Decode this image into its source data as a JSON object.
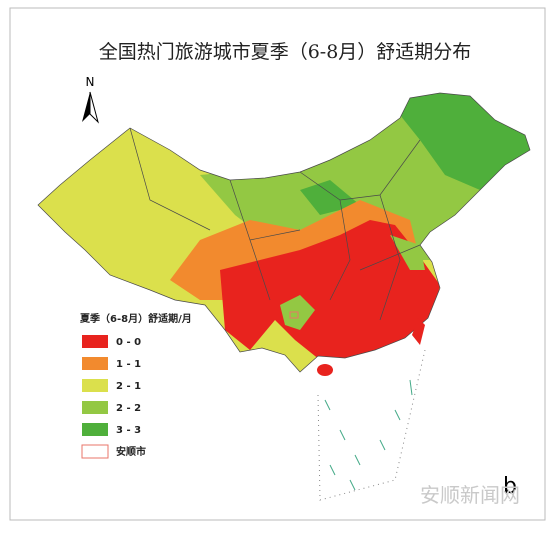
{
  "header": {
    "title": "全国热门旅游城市夏季（6-8月）舒适期分布"
  },
  "north": "N",
  "legend": {
    "title": "夏季（6-8月）舒适期/月",
    "items": [
      {
        "label": "0 - 0",
        "color": "#e8231e"
      },
      {
        "label": "1 - 1",
        "color": "#f28a2e"
      },
      {
        "label": "2 - 1",
        "color": "#dbe04c"
      },
      {
        "label": "2 - 2",
        "color": "#93c843"
      },
      {
        "label": "3 - 3",
        "color": "#4faf3b"
      }
    ],
    "city": {
      "label": "安顺市",
      "color": "#e8756a"
    }
  },
  "panel": "b",
  "watermark": "安顺新闻网"
}
